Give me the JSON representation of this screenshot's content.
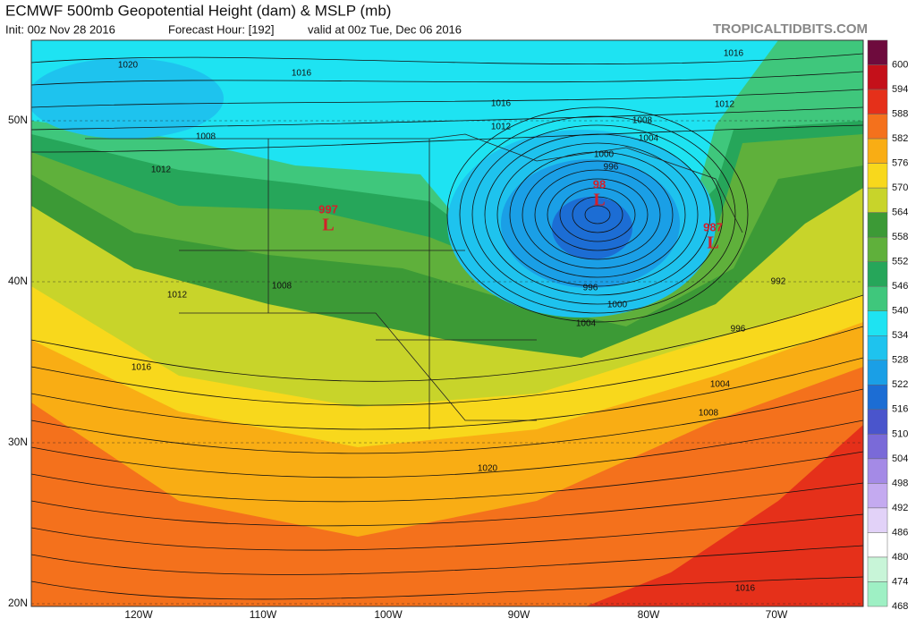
{
  "header": {
    "title": "ECMWF 500mb Geopotential Height (dam) & MSLP (mb)",
    "init": "Init: 00z Nov 28 2016",
    "forecast_hour": "Forecast Hour: [192]",
    "valid": "valid at 00z Tue, Dec 06 2016",
    "credit": "TROPICALTIDBITS.COM"
  },
  "colorbar": {
    "levels": [
      {
        "label": "600",
        "color": "#6e0b3d"
      },
      {
        "label": "594",
        "color": "#c4101a"
      },
      {
        "label": "588",
        "color": "#e5301a"
      },
      {
        "label": "582",
        "color": "#f4711c"
      },
      {
        "label": "576",
        "color": "#f9ad14"
      },
      {
        "label": "570",
        "color": "#f8d81c"
      },
      {
        "label": "564",
        "color": "#c8d42a"
      },
      {
        "label": "558",
        "color": "#3c9a36"
      },
      {
        "label": "552",
        "color": "#5fb03b"
      },
      {
        "label": "546",
        "color": "#26a65a"
      },
      {
        "label": "540",
        "color": "#3fc77c"
      },
      {
        "label": "534",
        "color": "#1ee3f2"
      },
      {
        "label": "528",
        "color": "#1ec3ee"
      },
      {
        "label": "522",
        "color": "#1a9fe6"
      },
      {
        "label": "516",
        "color": "#1c6dd4"
      },
      {
        "label": "510",
        "color": "#4a55cc"
      },
      {
        "label": "504",
        "color": "#7a6ad8"
      },
      {
        "label": "498",
        "color": "#a48ae6"
      },
      {
        "label": "492",
        "color": "#c4aaf0"
      },
      {
        "label": "486",
        "color": "#e2d2f8"
      },
      {
        "label": "480",
        "color": "#ffffff"
      },
      {
        "label": "474",
        "color": "#c8f5d8"
      },
      {
        "label": "468",
        "color": "#9ef0c4"
      }
    ]
  },
  "axes": {
    "lat_labels": [
      "50N",
      "40N",
      "30N",
      "20N"
    ],
    "lon_labels": [
      "120W",
      "110W",
      "100W",
      "90W",
      "80W",
      "70W"
    ]
  },
  "lows": [
    {
      "pressure": "997",
      "symbol": "L"
    },
    {
      "pressure": "98",
      "symbol": "L"
    },
    {
      "pressure": "987",
      "symbol": "L"
    }
  ],
  "isobar_labels": [
    "1020",
    "1016",
    "1016",
    "1016",
    "1012",
    "1012",
    "1008",
    "1008",
    "1004",
    "1000",
    "996",
    "1012",
    "1008",
    "1012",
    "1016",
    "996",
    "1000",
    "1004",
    "992",
    "996",
    "1004",
    "1008",
    "1020",
    "1016"
  ]
}
